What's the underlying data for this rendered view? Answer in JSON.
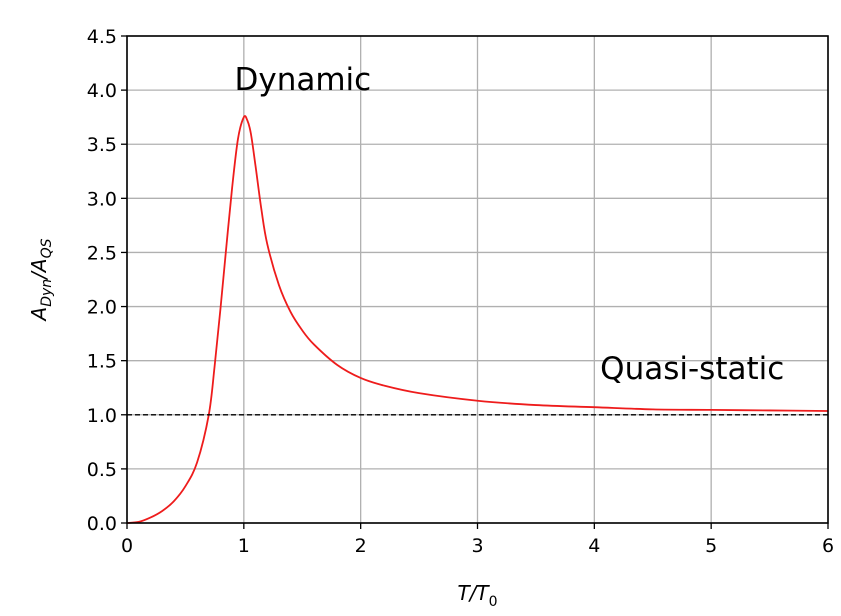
{
  "chart_data": {
    "type": "line",
    "title": "",
    "xlabel": {
      "base": "T/T",
      "sub": "0"
    },
    "ylabel": {
      "a1": "A",
      "s1": "Dyn",
      "mid": "/A",
      "s2": "QS"
    },
    "xlim": [
      0,
      6
    ],
    "ylim": [
      0,
      4.5
    ],
    "x_ticks": [
      0,
      1,
      2,
      3,
      4,
      5,
      6
    ],
    "x_tick_labels": [
      "0",
      "1",
      "2",
      "3",
      "4",
      "5",
      "6"
    ],
    "y_ticks": [
      0,
      0.5,
      1,
      1.5,
      2,
      2.5,
      3,
      3.5,
      4,
      4.5
    ],
    "y_tick_labels": [
      "0.0",
      "0.5",
      "1.0",
      "1.5",
      "2.0",
      "2.5",
      "3.0",
      "3.5",
      "4.0",
      "4.5"
    ],
    "grid": true,
    "series": [
      {
        "color": "#ee1c1c",
        "style": "solid",
        "x": [
          0,
          0.1,
          0.2,
          0.3,
          0.4,
          0.5,
          0.6,
          0.7,
          0.75,
          0.8,
          0.85,
          0.9,
          0.95,
          1.0,
          1.03,
          1.06,
          1.1,
          1.15,
          1.2,
          1.3,
          1.4,
          1.5,
          1.6,
          1.8,
          2.0,
          2.2,
          2.5,
          3.0,
          3.5,
          4.0,
          4.5,
          5.0,
          5.5,
          6.0
        ],
        "y": [
          0,
          0.01,
          0.05,
          0.11,
          0.2,
          0.34,
          0.56,
          1.0,
          1.45,
          1.98,
          2.55,
          3.1,
          3.55,
          3.75,
          3.72,
          3.6,
          3.3,
          2.9,
          2.58,
          2.2,
          1.95,
          1.78,
          1.65,
          1.46,
          1.34,
          1.27,
          1.2,
          1.13,
          1.09,
          1.07,
          1.05,
          1.045,
          1.04,
          1.035
        ]
      },
      {
        "color": "#000000",
        "style": "dashed",
        "x": [
          0,
          6
        ],
        "y": [
          1.0,
          1.0
        ]
      }
    ],
    "annotations": [
      {
        "text": "Dynamic",
        "x": 0.92,
        "y": 4.0
      },
      {
        "text": "Quasi-static",
        "x": 4.05,
        "y": 1.33
      }
    ]
  }
}
